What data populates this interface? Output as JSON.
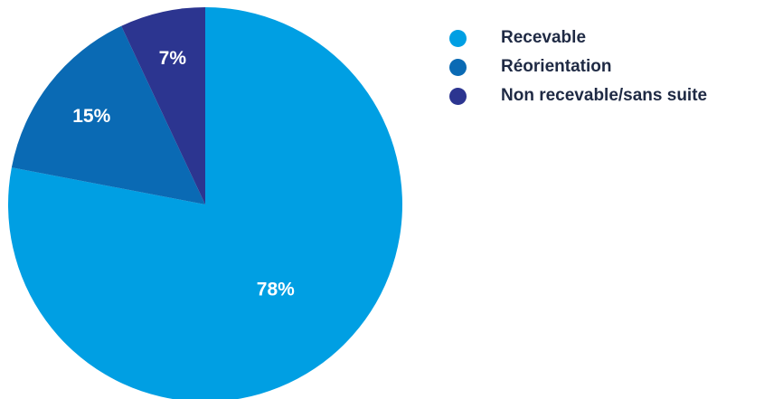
{
  "chart_data": {
    "type": "pie",
    "title": "",
    "start": "top",
    "direction": "clockwise",
    "legend_position": "right",
    "slices": [
      {
        "label": "Recevable",
        "value": 78,
        "display": "78%",
        "color": "#009fe3"
      },
      {
        "label": "Réorientation",
        "value": 15,
        "display": "15%",
        "color": "#0a6ab4"
      },
      {
        "label": "Non recevable/sans suite",
        "value": 7,
        "display": "7%",
        "color": "#2c3590"
      }
    ]
  }
}
